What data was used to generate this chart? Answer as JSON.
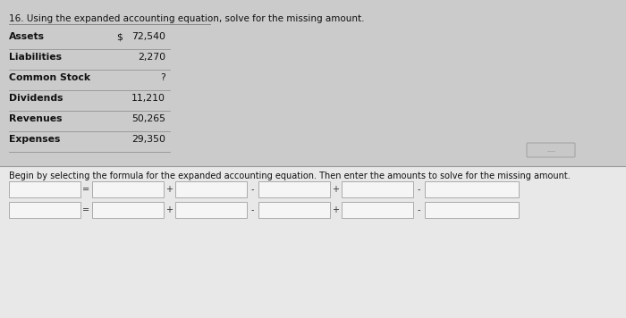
{
  "title": "16. Using the expanded accounting equation, solve for the missing amount.",
  "bg_top": "#cbcbcb",
  "bg_bottom": "#e8e8e8",
  "table_rows": [
    {
      "label": "Assets",
      "dollar": "$",
      "value": "72,540"
    },
    {
      "label": "Liabilities",
      "dollar": "",
      "value": "2,270"
    },
    {
      "label": "Common Stock",
      "dollar": "",
      "value": "?"
    },
    {
      "label": "Dividends",
      "dollar": "",
      "value": "11,210"
    },
    {
      "label": "Revenues",
      "dollar": "",
      "value": "50,265"
    },
    {
      "label": "Expenses",
      "dollar": "",
      "value": "29,350"
    }
  ],
  "instruction": "Begin by selecting the formula for the expanded accounting equation. Then enter the amounts to solve for the missing amount.",
  "operators_row1": [
    "=",
    "+",
    "-",
    "+",
    "-"
  ],
  "operators_row2": [
    "=",
    "+",
    "-",
    "+",
    "-"
  ],
  "divider_color": "#aaaaaa",
  "line_color": "#888888",
  "text_color": "#111111",
  "box_border": "#aaaaaa",
  "box_fill": "#f5f5f5",
  "button_color": "#c8c8c8",
  "button_text": ".....",
  "sep_line_color": "#999999"
}
